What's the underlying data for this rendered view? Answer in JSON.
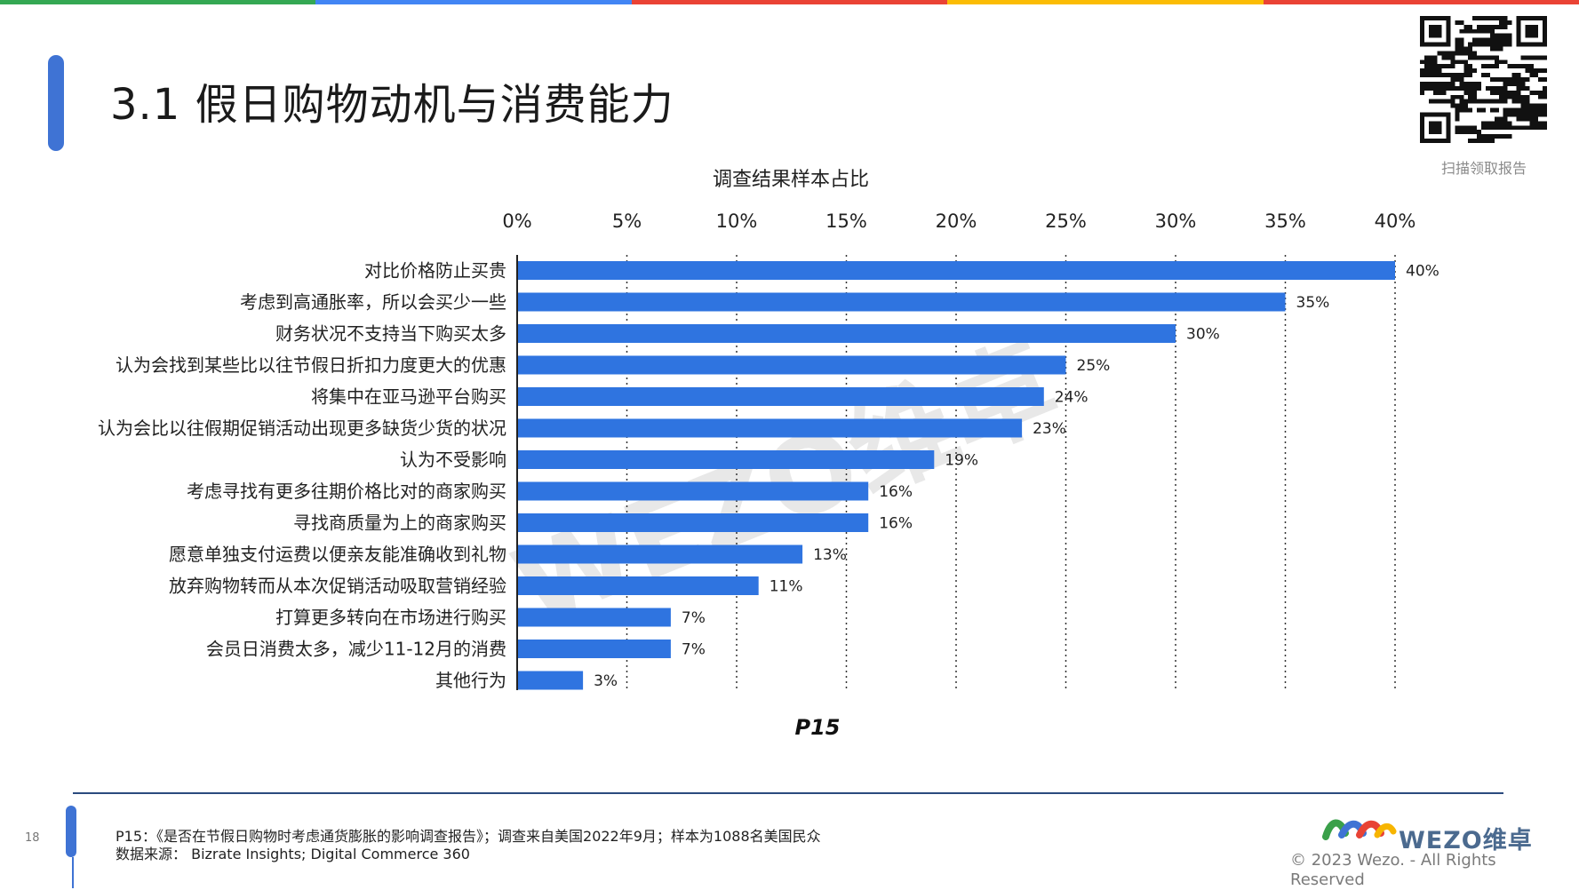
{
  "header": {
    "title": "3.1 假日购物动机与消费能力",
    "stripe_colors": [
      "#34a853",
      "#4285f4",
      "#ea4335",
      "#fbbc04",
      "#ea4335"
    ],
    "accent_color": "#3f73d4"
  },
  "qr": {
    "icon": "qr-code-icon",
    "caption": "扫描领取报告"
  },
  "chart_data": {
    "type": "bar",
    "orientation": "horizontal",
    "title": "调查结果样本占比",
    "categories": [
      "对比价格防止买贵",
      "考虑到高通胀率，所以会买少一些",
      "财务状况不支持当下购买太多",
      "认为会找到某些比以往节假日折扣力度更大的优惠",
      "将集中在亚马逊平台购买",
      "认为会比以往假期促销活动出现更多缺货少货的状况",
      "认为不受影响",
      "考虑寻找有更多往期价格比对的商家购买",
      "寻找商质量为上的商家购买",
      "愿意单独支付运费以便亲友能准确收到礼物",
      "放弃购物转而从本次促销活动吸取营销经验",
      "打算更多转向在市场进行购买",
      "会员日消费太多，减少11-12月的消费",
      "其他行为"
    ],
    "values": [
      40,
      35,
      30,
      25,
      24,
      23,
      19,
      16,
      16,
      13,
      11,
      7,
      7,
      3
    ],
    "value_labels": [
      "40%",
      "35%",
      "30%",
      "25%",
      "24%",
      "23%",
      "19%",
      "16%",
      "16%",
      "13%",
      "11%",
      "7%",
      "7%",
      "3%"
    ],
    "x_ticks": [
      0,
      5,
      10,
      15,
      20,
      25,
      30,
      35,
      40
    ],
    "x_tick_labels": [
      "0%",
      "5%",
      "10%",
      "15%",
      "20%",
      "25%",
      "30%",
      "35%",
      "40%"
    ],
    "xlim": [
      0,
      40
    ],
    "axis_position": "top",
    "grid": "vertical-dotted",
    "bar_color": "#2f74e0",
    "watermark": "WEZO维卓"
  },
  "figure_label": "P15",
  "footer": {
    "page_number": "18",
    "note_line": "P15：《是否在节假日购物时考虑通货膨胀的影响调查报告》；调查来自美国2022年9月；样本为1088名美国民众",
    "source_line": "数据来源：  Bizrate Insights; Digital Commerce 360",
    "brand": "WEZO维卓",
    "brand_icon": "wezo-logo-icon",
    "copyright": "© 2023 Wezo. - All Rights Reserved"
  }
}
